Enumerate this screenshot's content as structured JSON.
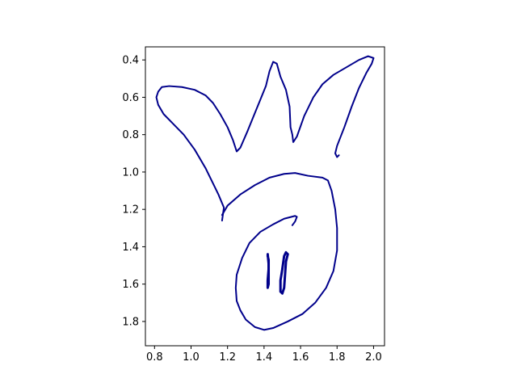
{
  "chart_data": {
    "type": "line",
    "title": "",
    "xlabel": "",
    "ylabel": "",
    "xlim": [
      0.75,
      2.06
    ],
    "ylim": [
      0.33,
      1.93
    ],
    "y_inverted": true,
    "grid": false,
    "legend": "none",
    "x_ticks": [
      "0.8",
      "1.0",
      "1.2",
      "1.4",
      "1.6",
      "1.8",
      "2.0"
    ],
    "y_ticks": [
      "0.4",
      "0.6",
      "0.8",
      "1.0",
      "1.2",
      "1.4",
      "1.6",
      "1.8"
    ],
    "series": [
      {
        "color": "#00008b",
        "points": [
          [
            1.17,
            1.26
          ],
          [
            1.18,
            1.19
          ],
          [
            1.15,
            1.12
          ],
          [
            1.12,
            1.06
          ],
          [
            1.08,
            0.98
          ],
          [
            1.02,
            0.88
          ],
          [
            0.96,
            0.8
          ],
          [
            0.9,
            0.74
          ],
          [
            0.85,
            0.69
          ],
          [
            0.82,
            0.64
          ],
          [
            0.81,
            0.6
          ],
          [
            0.82,
            0.57
          ],
          [
            0.84,
            0.545
          ],
          [
            0.88,
            0.54
          ],
          [
            0.95,
            0.545
          ],
          [
            1.02,
            0.56
          ],
          [
            1.08,
            0.59
          ],
          [
            1.12,
            0.63
          ],
          [
            1.16,
            0.69
          ],
          [
            1.2,
            0.76
          ],
          [
            1.23,
            0.83
          ],
          [
            1.25,
            0.89
          ],
          [
            1.27,
            0.87
          ],
          [
            1.31,
            0.78
          ],
          [
            1.36,
            0.66
          ],
          [
            1.41,
            0.54
          ],
          [
            1.43,
            0.46
          ],
          [
            1.45,
            0.41
          ],
          [
            1.47,
            0.42
          ],
          [
            1.49,
            0.49
          ],
          [
            1.52,
            0.56
          ],
          [
            1.54,
            0.65
          ],
          [
            1.545,
            0.76
          ],
          [
            1.555,
            0.8
          ],
          [
            1.56,
            0.84
          ],
          [
            1.58,
            0.81
          ],
          [
            1.62,
            0.7
          ],
          [
            1.67,
            0.6
          ],
          [
            1.72,
            0.53
          ],
          [
            1.78,
            0.48
          ],
          [
            1.85,
            0.44
          ],
          [
            1.92,
            0.4
          ],
          [
            1.97,
            0.38
          ],
          [
            2.0,
            0.39
          ],
          [
            1.99,
            0.42
          ],
          [
            1.96,
            0.47
          ],
          [
            1.92,
            0.55
          ],
          [
            1.88,
            0.65
          ],
          [
            1.84,
            0.76
          ],
          [
            1.8,
            0.86
          ],
          [
            1.79,
            0.9
          ],
          [
            1.8,
            0.92
          ],
          [
            1.81,
            0.91
          ]
        ]
      },
      {
        "color": "#00008b",
        "points": [
          [
            1.17,
            1.23
          ],
          [
            1.2,
            1.18
          ],
          [
            1.27,
            1.12
          ],
          [
            1.35,
            1.07
          ],
          [
            1.43,
            1.03
          ],
          [
            1.51,
            1.01
          ],
          [
            1.57,
            1.005
          ],
          [
            1.64,
            1.02
          ],
          [
            1.72,
            1.03
          ],
          [
            1.75,
            1.045
          ],
          [
            1.77,
            1.1
          ],
          [
            1.79,
            1.2
          ],
          [
            1.8,
            1.3
          ],
          [
            1.8,
            1.42
          ],
          [
            1.78,
            1.53
          ],
          [
            1.74,
            1.62
          ],
          [
            1.68,
            1.7
          ],
          [
            1.61,
            1.76
          ],
          [
            1.53,
            1.8
          ],
          [
            1.45,
            1.835
          ],
          [
            1.4,
            1.845
          ],
          [
            1.35,
            1.83
          ],
          [
            1.3,
            1.79
          ],
          [
            1.27,
            1.74
          ],
          [
            1.25,
            1.69
          ],
          [
            1.245,
            1.62
          ],
          [
            1.25,
            1.55
          ],
          [
            1.28,
            1.46
          ],
          [
            1.32,
            1.38
          ],
          [
            1.38,
            1.32
          ],
          [
            1.45,
            1.28
          ],
          [
            1.51,
            1.25
          ],
          [
            1.57,
            1.235
          ],
          [
            1.58,
            1.24
          ],
          [
            1.57,
            1.265
          ],
          [
            1.555,
            1.285
          ]
        ]
      },
      {
        "color": "#00008b",
        "points": [
          [
            1.42,
            1.45
          ],
          [
            1.425,
            1.47
          ],
          [
            1.425,
            1.52
          ],
          [
            1.42,
            1.58
          ],
          [
            1.42,
            1.62
          ],
          [
            1.425,
            1.6
          ],
          [
            1.425,
            1.49
          ],
          [
            1.42,
            1.44
          ]
        ]
      },
      {
        "color": "#00008b",
        "points": [
          [
            1.53,
            1.44
          ],
          [
            1.52,
            1.43
          ],
          [
            1.51,
            1.45
          ],
          [
            1.5,
            1.52
          ],
          [
            1.49,
            1.58
          ],
          [
            1.49,
            1.64
          ],
          [
            1.5,
            1.65
          ],
          [
            1.51,
            1.62
          ],
          [
            1.515,
            1.55
          ],
          [
            1.52,
            1.48
          ],
          [
            1.53,
            1.44
          ]
        ]
      }
    ]
  }
}
